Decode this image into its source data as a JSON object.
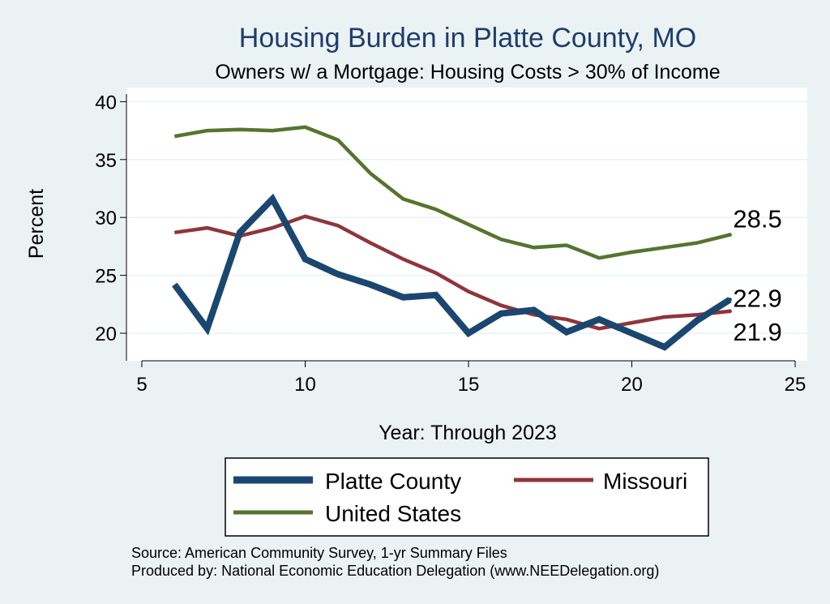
{
  "chart_data": {
    "type": "line",
    "title": "Housing Burden in Platte County, MO",
    "subtitle": "Owners w/ a Mortgage: Housing Costs > 30% of Income",
    "xlabel": "Year: Through 2023",
    "ylabel": "Percent",
    "xlim": [
      5,
      25
    ],
    "ylim": [
      17.5,
      41
    ],
    "xticks": [
      5,
      10,
      15,
      20,
      25
    ],
    "yticks": [
      20,
      25,
      30,
      35,
      40
    ],
    "grid": true,
    "x": [
      6,
      7,
      8,
      9,
      10,
      11,
      12,
      13,
      14,
      15,
      16,
      17,
      18,
      19,
      20,
      21,
      22,
      23
    ],
    "series": [
      {
        "name": "Platte County",
        "color": "#1A476F",
        "values": [
          24.2,
          20.4,
          28.7,
          31.6,
          26.4,
          25.1,
          24.2,
          23.1,
          23.3,
          20.0,
          21.7,
          22.0,
          20.1,
          21.2,
          20.0,
          18.8,
          21.1,
          22.9
        ]
      },
      {
        "name": "Missouri",
        "color": "#90353B",
        "values": [
          28.7,
          29.1,
          28.4,
          29.1,
          30.1,
          29.3,
          27.8,
          26.4,
          25.2,
          23.6,
          22.4,
          21.6,
          21.2,
          20.4,
          20.9,
          21.4,
          21.6,
          21.9
        ]
      },
      {
        "name": "United States",
        "color": "#55752F",
        "values": [
          37.0,
          37.5,
          37.6,
          37.5,
          37.8,
          36.7,
          33.8,
          31.6,
          30.7,
          29.4,
          28.1,
          27.4,
          27.6,
          26.5,
          27.0,
          27.4,
          27.8,
          28.5
        ]
      }
    ],
    "end_labels": [
      {
        "series": "United States",
        "text": "28.5"
      },
      {
        "series": "Platte County",
        "text": "22.9"
      },
      {
        "series": "Missouri",
        "text": "21.9"
      }
    ],
    "legend_placement": "bottom"
  },
  "footer": {
    "source": "Source: American Community Survey, 1-yr Summary Files",
    "produced_by": "Produced by: National Economic Education Delegation (www.NEEDelegation.org)"
  }
}
